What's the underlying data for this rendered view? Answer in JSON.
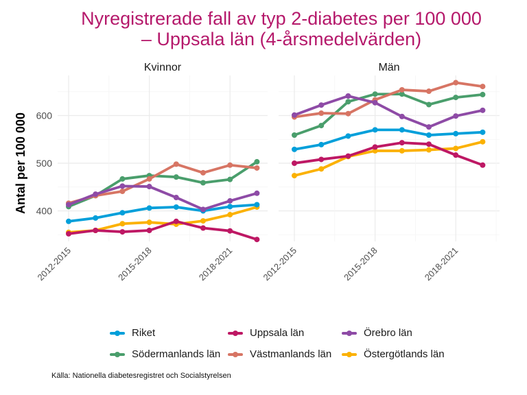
{
  "title_lines": [
    "Nyregistrerade fall av typ 2-diabetes per 100 000",
    "– Uppsala län (4-årsmedelvärden)"
  ],
  "source": "Källa: Nationella diabetesregistret och Socialstyrelsen",
  "chart_data": {
    "type": "line",
    "title": "Nyregistrerade fall av typ 2-diabetes per 100 000 – Uppsala län (4-årsmedelvärden)",
    "ylabel": "Antal per 100 000",
    "xlabel": "",
    "ylim": [
      330,
      685
    ],
    "yticks": [
      400,
      500,
      600
    ],
    "grid": true,
    "legend_position": "bottom",
    "x": [
      "2012-2015",
      "2013-2016",
      "2014-2017",
      "2015-2018",
      "2016-2019",
      "2017-2020",
      "2018-2021",
      "2019-2022"
    ],
    "xtick_labels": [
      "2012-2015",
      "2015-2018",
      "2018-2021"
    ],
    "xtick_indices": [
      0,
      3,
      6
    ],
    "series_order": [
      "Riket",
      "Uppsala län",
      "Örebro län",
      "Södermanlands län",
      "Västmanlands län",
      "Östergötlands län"
    ],
    "colors": {
      "Riket": "#009FDA",
      "Uppsala län": "#BE1864",
      "Örebro län": "#8E4BA6",
      "Södermanlands län": "#4A9E6C",
      "Västmanlands län": "#D77564",
      "Östergötlands län": "#FBB100"
    },
    "panels": [
      {
        "name": "Kvinnor",
        "series": [
          {
            "name": "Östergötlands län",
            "values": [
              355,
              359,
              373,
              376,
              372,
              379,
              392,
              408
            ]
          },
          {
            "name": "Uppsala län",
            "values": [
              352,
              359,
              356,
              359,
              378,
              364,
              358,
              340
            ]
          },
          {
            "name": "Riket",
            "values": [
              378,
              385,
              396,
              406,
              408,
              400,
              409,
              413
            ]
          },
          {
            "name": "Södermanlands län",
            "values": [
              409,
              432,
              467,
              474,
              471,
              459,
              466,
              503
            ]
          },
          {
            "name": "Västmanlands län",
            "values": [
              416,
              432,
              441,
              467,
              498,
              480,
              496,
              490
            ]
          },
          {
            "name": "Örebro län",
            "values": [
              413,
              435,
              452,
              451,
              428,
              403,
              421,
              437
            ]
          }
        ]
      },
      {
        "name": "Män",
        "series": [
          {
            "name": "Östergötlands län",
            "values": [
              474,
              488,
              514,
              526,
              526,
              528,
              531,
              545
            ]
          },
          {
            "name": "Uppsala län",
            "values": [
              500,
              508,
              515,
              534,
              543,
              540,
              517,
              496
            ]
          },
          {
            "name": "Riket",
            "values": [
              529,
              539,
              557,
              570,
              570,
              559,
              562,
              565
            ]
          },
          {
            "name": "Södermanlands län",
            "values": [
              559,
              579,
              629,
              645,
              645,
              623,
              638,
              644
            ]
          },
          {
            "name": "Västmanlands län",
            "values": [
              597,
              605,
              604,
              633,
              654,
              651,
              669,
              661
            ]
          },
          {
            "name": "Örebro län",
            "values": [
              601,
              622,
              641,
              627,
              598,
              576,
              599,
              611
            ]
          }
        ]
      }
    ]
  },
  "legend": [
    {
      "label": "Riket",
      "color": "#009FDA"
    },
    {
      "label": "Uppsala län",
      "color": "#BE1864"
    },
    {
      "label": "Örebro län",
      "color": "#8E4BA6"
    },
    {
      "label": "Södermanlands län",
      "color": "#4A9E6C"
    },
    {
      "label": "Västmanlands län",
      "color": "#D77564"
    },
    {
      "label": "Östergötlands län",
      "color": "#FBB100"
    }
  ]
}
